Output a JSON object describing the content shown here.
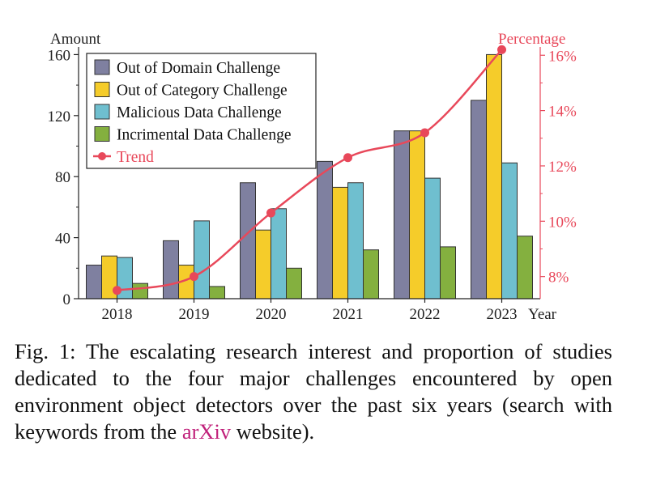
{
  "chart_data": {
    "type": "bar",
    "categories": [
      "2018",
      "2019",
      "2020",
      "2021",
      "2022",
      "2023"
    ],
    "xlabel": "Year",
    "ylabel": "Amount",
    "y2label": "Percentage",
    "ylim": [
      0,
      165
    ],
    "y2lim": [
      7.2,
      16.3
    ],
    "yticks": [
      "0",
      "40",
      "80",
      "120",
      "160"
    ],
    "y2ticks": [
      "8%",
      "10%",
      "12%",
      "14%",
      "16%"
    ],
    "legend_position": "top-left",
    "series": [
      {
        "name": "Out of Domain Challenge",
        "color": "#7f80a0",
        "values": [
          22,
          38,
          76,
          90,
          110,
          130
        ]
      },
      {
        "name": "Out of Category Challenge",
        "color": "#f5cc2a",
        "values": [
          28,
          22,
          45,
          73,
          110,
          160
        ]
      },
      {
        "name": "Malicious Data Challenge",
        "color": "#6fbfcf",
        "values": [
          27,
          51,
          59,
          76,
          79,
          89
        ]
      },
      {
        "name": "Incrimental Data Challenge",
        "color": "#84b03f",
        "values": [
          10,
          8,
          20,
          32,
          34,
          41
        ]
      }
    ],
    "trend": {
      "name": "Trend",
      "color": "#e8485a",
      "values": [
        7.5,
        8.0,
        10.3,
        12.3,
        13.2,
        16.2
      ]
    }
  },
  "caption": {
    "text_before": "Fig. 1: The escalating research interest and proportion of studies dedicated to the four major challenges encountered by open environment object detectors over the past six years (search with keywords from the ",
    "link": "arXiv",
    "text_after": " website)."
  }
}
